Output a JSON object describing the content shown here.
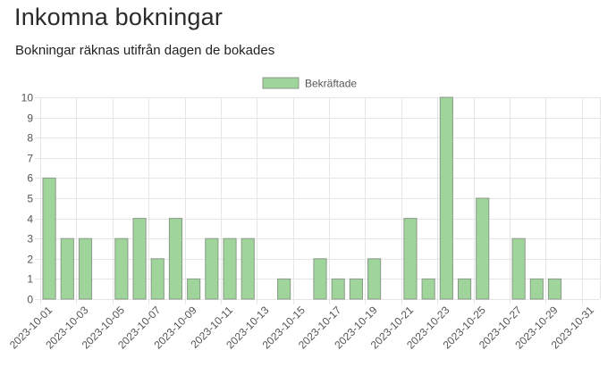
{
  "page": {
    "title": "Inkomna bokningar",
    "subtitle": "Bokningar räknas utifrån dagen de bokades"
  },
  "colors": {
    "bar_fill": "#9fd49a",
    "bar_stroke": "#8a9a8a",
    "grid": "#e6e6e6",
    "axis_text": "#555555"
  },
  "chart_data": {
    "type": "bar",
    "legend": {
      "position": "top-center",
      "label": "Bekräftade"
    },
    "ylim": [
      0,
      10
    ],
    "yticks": [
      0,
      1,
      2,
      3,
      4,
      5,
      6,
      7,
      8,
      9,
      10
    ],
    "grid": true,
    "categories": [
      "2023-10-01",
      "2023-10-02",
      "2023-10-03",
      "2023-10-04",
      "2023-10-05",
      "2023-10-06",
      "2023-10-07",
      "2023-10-08",
      "2023-10-09",
      "2023-10-10",
      "2023-10-11",
      "2023-10-12",
      "2023-10-13",
      "2023-10-14",
      "2023-10-15",
      "2023-10-16",
      "2023-10-17",
      "2023-10-18",
      "2023-10-19",
      "2023-10-20",
      "2023-10-21",
      "2023-10-22",
      "2023-10-23",
      "2023-10-24",
      "2023-10-25",
      "2023-10-26",
      "2023-10-27",
      "2023-10-28",
      "2023-10-29",
      "2023-10-30",
      "2023-10-31"
    ],
    "xtick_labels": [
      "2023-10-01",
      "2023-10-03",
      "2023-10-05",
      "2023-10-07",
      "2023-10-09",
      "2023-10-11",
      "2023-10-13",
      "2023-10-15",
      "2023-10-17",
      "2023-10-19",
      "2023-10-21",
      "2023-10-23",
      "2023-10-25",
      "2023-10-27",
      "2023-10-29",
      "2023-10-31"
    ],
    "series": [
      {
        "name": "Bekräftade",
        "values": [
          6,
          3,
          3,
          0,
          3,
          4,
          2,
          4,
          1,
          3,
          3,
          3,
          0,
          1,
          0,
          2,
          1,
          1,
          2,
          0,
          4,
          1,
          10,
          1,
          5,
          0,
          3,
          1,
          1,
          0,
          0
        ]
      }
    ]
  }
}
